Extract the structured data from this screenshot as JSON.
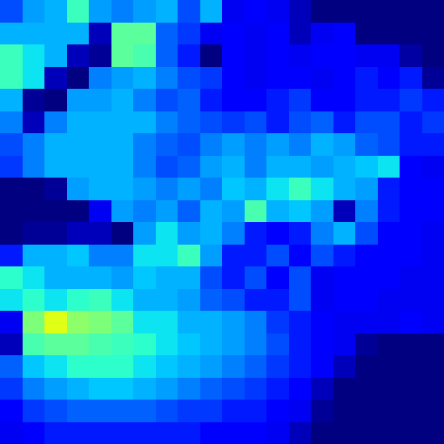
{
  "chart_data": {
    "type": "heatmap",
    "color": "jet",
    "tick_labels": false,
    "zlim": [
      0,
      1
    ],
    "cells": [
      [
        0.2,
        0.28,
        0.3,
        0.4,
        0.28,
        0.25,
        0.28,
        0.3,
        0.2,
        0.3,
        0.1,
        0.12,
        0.1,
        0.05,
        0,
        0,
        0,
        0,
        0,
        0
      ],
      [
        0.3,
        0.3,
        0.3,
        0.3,
        0.05,
        0.45,
        0.45,
        0.22,
        0.18,
        0.1,
        0.12,
        0.1,
        0.12,
        0.05,
        0.1,
        0.12,
        0,
        0,
        0,
        0
      ],
      [
        0.4,
        0.35,
        0.3,
        0.05,
        0.02,
        0.45,
        0.42,
        0.22,
        0.15,
        0,
        0.12,
        0.1,
        0.12,
        0.1,
        0.12,
        0.12,
        0.1,
        0.1,
        0.03,
        0
      ],
      [
        0.4,
        0.35,
        0.05,
        0,
        0.25,
        0.28,
        0.3,
        0.25,
        0.2,
        0.18,
        0.12,
        0.1,
        0.12,
        0.12,
        0.1,
        0.12,
        0.15,
        0.12,
        0.15,
        0.02
      ],
      [
        0.3,
        0.02,
        0,
        0.28,
        0.28,
        0.3,
        0.25,
        0.2,
        0.22,
        0.15,
        0.12,
        0.12,
        0.15,
        0.18,
        0.12,
        0.12,
        0.15,
        0.15,
        0.18,
        0.15
      ],
      [
        0.25,
        0.05,
        0.25,
        0.3,
        0.3,
        0.3,
        0.3,
        0.25,
        0.22,
        0.2,
        0.18,
        0.2,
        0.15,
        0.2,
        0.22,
        0.15,
        0.2,
        0.2,
        0.15,
        0.18
      ],
      [
        0.2,
        0.25,
        0.3,
        0.3,
        0.3,
        0.3,
        0.25,
        0.22,
        0.2,
        0.25,
        0.28,
        0.25,
        0.28,
        0.25,
        0.3,
        0.28,
        0.22,
        0.2,
        0.15,
        0.15
      ],
      [
        0.18,
        0.25,
        0.3,
        0.3,
        0.3,
        0.3,
        0.25,
        0.2,
        0.22,
        0.28,
        0.3,
        0.25,
        0.3,
        0.3,
        0.28,
        0.3,
        0.32,
        0.35,
        0.12,
        0.1
      ],
      [
        0,
        0,
        0.02,
        0.28,
        0.3,
        0.3,
        0.28,
        0.25,
        0.28,
        0.25,
        0.32,
        0.3,
        0.35,
        0.4,
        0.35,
        0.3,
        0.28,
        0.15,
        0.12,
        0.12
      ],
      [
        0,
        0,
        0,
        0,
        0.1,
        0.28,
        0.25,
        0.28,
        0.22,
        0.3,
        0.28,
        0.42,
        0.3,
        0.32,
        0.28,
        0.05,
        0.25,
        0.15,
        0.12,
        0.12
      ],
      [
        0,
        0.02,
        0.02,
        0.05,
        0.05,
        0,
        0.28,
        0.35,
        0.28,
        0.3,
        0.25,
        0.15,
        0.12,
        0.15,
        0.25,
        0.3,
        0.2,
        0.12,
        0.12,
        0.1
      ],
      [
        0.15,
        0.3,
        0.3,
        0.32,
        0.25,
        0.25,
        0.35,
        0.35,
        0.4,
        0.28,
        0.15,
        0.15,
        0.2,
        0.12,
        0.2,
        0.15,
        0.12,
        0.12,
        0.12,
        0.1
      ],
      [
        0.38,
        0.35,
        0.3,
        0.3,
        0.3,
        0.28,
        0.32,
        0.3,
        0.3,
        0.2,
        0.15,
        0.2,
        0.12,
        0.2,
        0.1,
        0.12,
        0.12,
        0.12,
        0.1,
        0.1
      ],
      [
        0.35,
        0.38,
        0.35,
        0.38,
        0.4,
        0.35,
        0.3,
        0.3,
        0.28,
        0.22,
        0.2,
        0.15,
        0.15,
        0.2,
        0.1,
        0.12,
        0.12,
        0.1,
        0.1,
        0.1
      ],
      [
        0.1,
        0.5,
        0.62,
        0.52,
        0.5,
        0.45,
        0.35,
        0.35,
        0.3,
        0.3,
        0.28,
        0.25,
        0.18,
        0.15,
        0.12,
        0.1,
        0.1,
        0.1,
        0.12,
        0.1
      ],
      [
        0.05,
        0.42,
        0.45,
        0.45,
        0.42,
        0.4,
        0.38,
        0.35,
        0.32,
        0.3,
        0.28,
        0.25,
        0.2,
        0.15,
        0.12,
        0.1,
        0.02,
        0,
        0,
        0
      ],
      [
        0.22,
        0.32,
        0.35,
        0.38,
        0.38,
        0.38,
        0.35,
        0.32,
        0.3,
        0.28,
        0.25,
        0.22,
        0.18,
        0.15,
        0.12,
        0.05,
        0,
        0,
        0,
        0
      ],
      [
        0.18,
        0.25,
        0.28,
        0.3,
        0.32,
        0.32,
        0.3,
        0.28,
        0.25,
        0.22,
        0.2,
        0.18,
        0.15,
        0.12,
        0.05,
        0,
        0,
        0,
        0,
        0
      ],
      [
        0.12,
        0.18,
        0.2,
        0.22,
        0.22,
        0.22,
        0.22,
        0.2,
        0.18,
        0.18,
        0.15,
        0.15,
        0.12,
        0.1,
        0.02,
        0,
        0,
        0,
        0,
        0
      ],
      [
        0.1,
        0.12,
        0.15,
        0.15,
        0.15,
        0.15,
        0.15,
        0.15,
        0.15,
        0.12,
        0.12,
        0.12,
        0.1,
        0.05,
        0,
        0,
        0,
        0,
        0,
        0
      ]
    ]
  }
}
